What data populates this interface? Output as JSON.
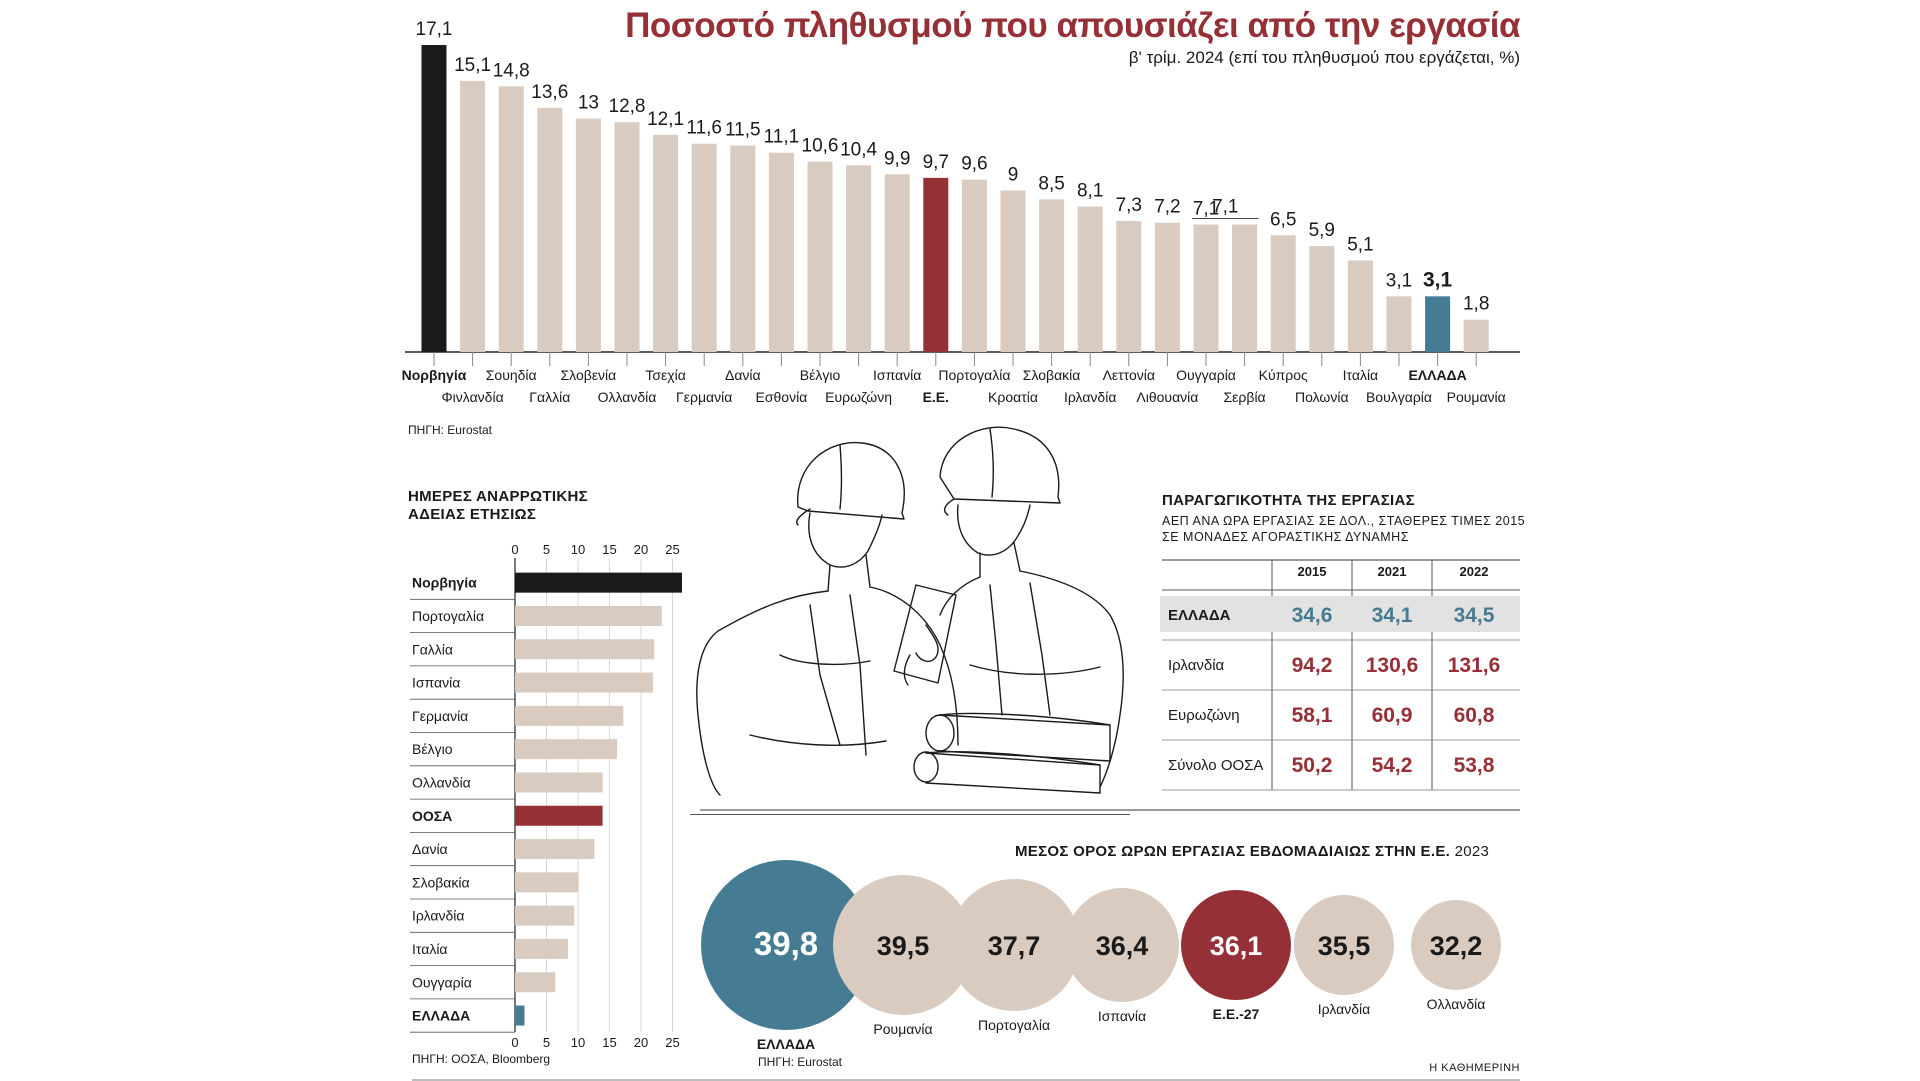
{
  "colors": {
    "beige": "#d9cbbf",
    "black": "#1a1a1a",
    "red": "#963037",
    "blue": "#457b93",
    "gray_row": "#e2e2e2"
  },
  "header": {
    "title": "Ποσοστό πληθυσμού που απουσιάζει από την εργασία",
    "subtitle": "β' τρίμ. 2024 (επί του πληθυσμού που εργάζεται, %)"
  },
  "chart_data": [
    {
      "type": "bar",
      "title": "Ποσοστό πληθυσμού που απουσιάζει από την εργασία",
      "subtitle": "β' τρίμ. 2024 (επί του πληθυσμού που εργάζεται, %)",
      "categories": [
        "Νορβηγία",
        "Φινλανδία",
        "Σουηδία",
        "Γαλλία",
        "Σλοβενία",
        "Ολλανδία",
        "Τσεχία",
        "Γερμανία",
        "Δανία",
        "Εσθονία",
        "Βέλγιο",
        "Ευρωζώνη",
        "Ισπανία",
        "Ε.Ε.",
        "Πορτογαλία",
        "Κροατία",
        "Σλοβακία",
        "Ιρλανδία",
        "Λεττονία",
        "Λιθουανία",
        "Ουγγαρία",
        "Σερβία",
        "Κύπρος",
        "Πολωνία",
        "Ιταλία",
        "Βουλγαρία",
        "ΕΛΛΑΔΑ",
        "Ρουμανία"
      ],
      "values": [
        17.1,
        15.1,
        14.8,
        13.6,
        13,
        12.8,
        12.1,
        11.6,
        11.5,
        11.1,
        10.6,
        10.4,
        9.9,
        9.7,
        9.6,
        9,
        8.5,
        8.1,
        7.3,
        7.2,
        7.1,
        7.1,
        6.5,
        5.9,
        5.1,
        3.1,
        3.1,
        1.8
      ],
      "value_labels": [
        "17,1",
        "15,1",
        "14,8",
        "13,6",
        "13",
        "12,8",
        "12,1",
        "11,6",
        "11,5",
        "11,1",
        "10,6",
        "10,4",
        "9,9",
        "9,7",
        "9,6",
        "9",
        "8,5",
        "8,1",
        "7,3",
        "7,2",
        "7,1",
        "",
        "6,5",
        "5,9",
        "5,1",
        "3,1",
        "3,1",
        "1,8"
      ],
      "highlight": {
        "Νορβηγία": "black",
        "Ε.Ε.": "red",
        "ΕΛΛΑΔΑ": "blue"
      },
      "bold_labels": [
        "Νορβηγία",
        "Ε.Ε.",
        "ΕΛΛΑΔΑ"
      ],
      "ylim": [
        0,
        17.1
      ],
      "source": "ΠΗΓΗ: Eurostat"
    },
    {
      "type": "bar",
      "orientation": "horizontal",
      "title": "ΗΜΕΡΕΣ ΑΝΑΡΡΩΤΙΚΗΣ ΑΔΕΙΑΣ ΕΤΗΣΙΩΣ",
      "title_lines": [
        "ΗΜΕΡΕΣ ΑΝΑΡΡΩΤΙΚΗΣ",
        "ΑΔΕΙΑΣ ΕΤΗΣΙΩΣ"
      ],
      "categories": [
        "Νορβηγία",
        "Πορτογαλία",
        "Γαλλία",
        "Ισπανία",
        "Γερμανία",
        "Βέλγιο",
        "Ολλανδία",
        "ΟΟΣΑ",
        "Δανία",
        "Σλοβακία",
        "Ιρλανδία",
        "Ιταλία",
        "Ουγγαρία",
        "ΕΛΛΑΔΑ"
      ],
      "values": [
        26.5,
        23.3,
        22.1,
        21.9,
        17.2,
        16.2,
        13.9,
        13.9,
        12.6,
        10.1,
        9.4,
        8.4,
        6.4,
        1.5
      ],
      "highlight": {
        "Νορβηγία": "black",
        "ΟΟΣΑ": "red",
        "ΕΛΛΑΔΑ": "blue"
      },
      "bold_labels": [
        "Νορβηγία",
        "ΟΟΣΑ",
        "ΕΛΛΑΔΑ"
      ],
      "xticks": [
        0,
        5,
        10,
        15,
        20,
        25
      ],
      "xlim": [
        0,
        26.5
      ],
      "source": "ΠΗΓΗ: ΟΟΣΑ, Bloomberg"
    },
    {
      "type": "table",
      "title": "ΠΑΡΑΓΩΓΙΚΟΤΗΤΑ ΤΗΣ ΕΡΓΑΣΙΑΣ",
      "subtitle_lines": [
        "ΑΕΠ ΑΝΑ ΩΡΑ ΕΡΓΑΣΙΑΣ ΣΕ ΔΟΛ., ΣΤΑΘΕΡΕΣ ΤΙΜΕΣ 2015",
        "ΣΕ ΜΟΝΑΔΕΣ ΑΓΟΡΑΣΤΙΚΗΣ ΔΥΝΑΜΗΣ"
      ],
      "columns": [
        "2015",
        "2021",
        "2022"
      ],
      "rows": [
        {
          "label": "ΕΛΛΑΔΑ",
          "values": [
            "34,6",
            "34,1",
            "34,5"
          ],
          "highlight": true
        },
        {
          "label": "Ιρλανδία",
          "values": [
            "94,2",
            "130,6",
            "131,6"
          ],
          "highlight": false
        },
        {
          "label": "Ευρωζώνη",
          "values": [
            "58,1",
            "60,9",
            "60,8"
          ],
          "highlight": false
        },
        {
          "label": "Σύνολο ΟΟΣΑ",
          "values": [
            "50,2",
            "54,2",
            "53,8"
          ],
          "highlight": false
        }
      ]
    },
    {
      "type": "bubble",
      "title": "ΜΕΣΟΣ ΟΡΟΣ ΩΡΩΝ ΕΡΓΑΣΙΑΣ ΕΒΔΟΜΑΔΙΑΙΩΣ ΣΤΗΝ Ε.Ε.",
      "title_year": "2023",
      "categories": [
        "ΕΛΛΑΔΑ",
        "Ρουμανία",
        "Πορτογαλία",
        "Ισπανία",
        "Ε.Ε.-27",
        "Ιρλανδία",
        "Ολλανδία"
      ],
      "values": [
        39.8,
        39.5,
        37.7,
        36.4,
        36.1,
        35.5,
        32.2
      ],
      "value_labels": [
        "39,8",
        "39,5",
        "37,7",
        "36,4",
        "36,1",
        "35,5",
        "32,2"
      ],
      "highlight": {
        "ΕΛΛΑΔΑ": "blue",
        "Ε.Ε.-27": "red"
      },
      "bold_labels": [
        "ΕΛΛΑΔΑ",
        "Ε.Ε.-27"
      ],
      "source": "ΠΗΓΗ: Eurostat"
    }
  ],
  "footer": {
    "publisher": "Η ΚΑΘΗΜΕΡΙΝΗ"
  },
  "illustration": {
    "icon": "construction-workers-line-art-icon"
  }
}
